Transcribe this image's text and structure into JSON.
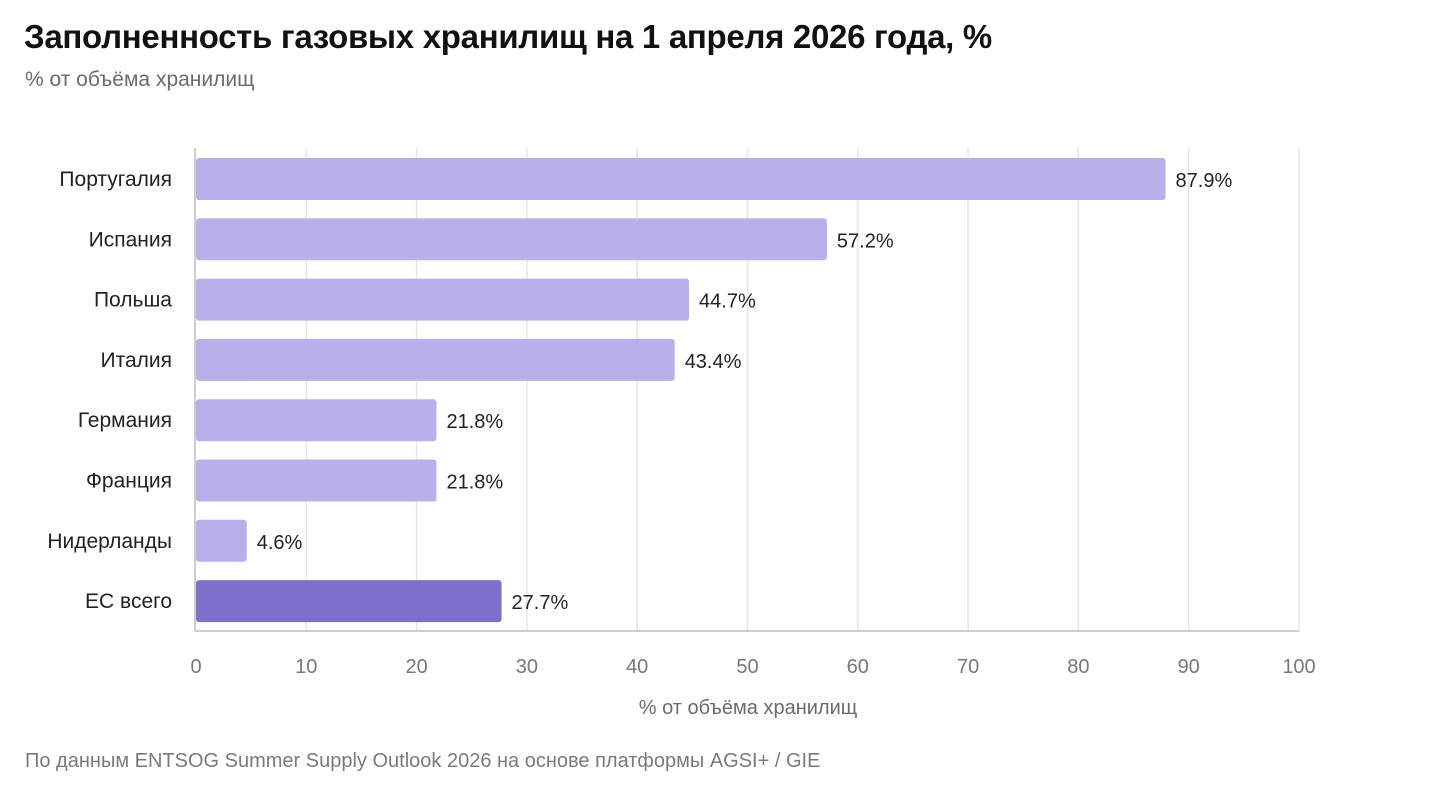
{
  "header": {
    "title": "Заполненность газовых хранилищ на 1 апреля 2026 года, %",
    "subtitle": "% от объёма хранилищ"
  },
  "footer": {
    "source": "По данным ENTSOG Summer Supply Outlook 2026 на основе платформы AGSI+ / GIE"
  },
  "colors": {
    "bar": "#b8b0e8",
    "bar_highlight": "#7b70cc",
    "grid": "#e6e6e6",
    "axis": "#bdbdbd",
    "label": "#222222",
    "tick": "#777777"
  },
  "chart_data": {
    "type": "bar",
    "orientation": "horizontal",
    "categories": [
      "Португалия",
      "Испания",
      "Польша",
      "Италия",
      "Германия",
      "Франция",
      "Нидерланды",
      "ЕС всего"
    ],
    "values": [
      87.9,
      57.2,
      44.7,
      43.4,
      21.8,
      21.8,
      4.6,
      27.7
    ],
    "value_labels": [
      "87.9%",
      "57.2%",
      "44.7%",
      "43.4%",
      "21.8%",
      "21.8%",
      "4.6%",
      "27.7%"
    ],
    "highlight": [
      "ЕС всего"
    ],
    "xlabel": "% от объёма хранилищ",
    "xlim": [
      0,
      100
    ],
    "xticks": [
      "0",
      "10",
      "20",
      "30",
      "40",
      "50",
      "60",
      "70",
      "80",
      "90",
      "100"
    ],
    "grid": true,
    "legend": "none"
  }
}
